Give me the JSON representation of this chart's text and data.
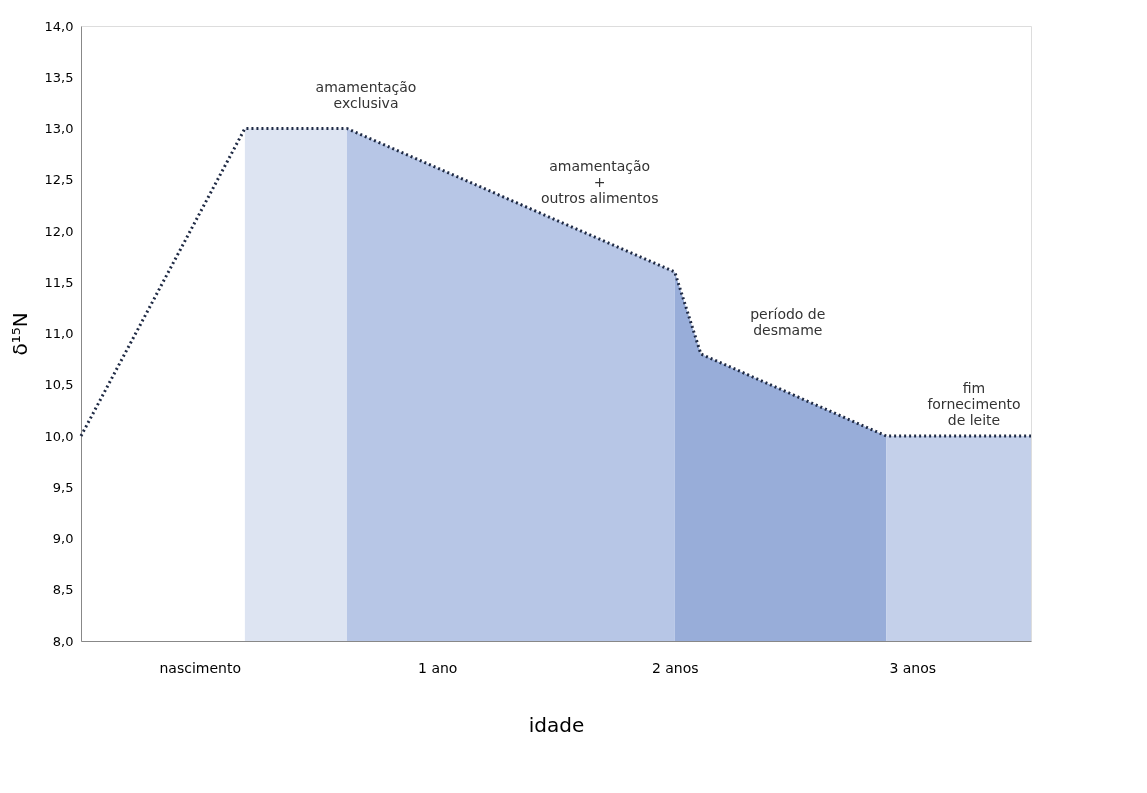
{
  "chart_data": {
    "type": "area",
    "xlabel": "idade",
    "ylabel": "δ¹⁵N",
    "xlim": [
      0,
      4
    ],
    "xticks": [
      {
        "value": 0.5,
        "label": "nascimento"
      },
      {
        "value": 1.5,
        "label": "1 ano"
      },
      {
        "value": 2.5,
        "label": "2 anos"
      },
      {
        "value": 3.5,
        "label": "3 anos"
      }
    ],
    "ylim": [
      8,
      14
    ],
    "yticks": [
      {
        "value": 8,
        "label": "8,0"
      },
      {
        "value": 8.5,
        "label": "8,5"
      },
      {
        "value": 9,
        "label": "9,0"
      },
      {
        "value": 9.5,
        "label": "9,5"
      },
      {
        "value": 10,
        "label": "10,0"
      },
      {
        "value": 10.5,
        "label": "10,5"
      },
      {
        "value": 11,
        "label": "11,0"
      },
      {
        "value": 11.5,
        "label": "11,5"
      },
      {
        "value": 12,
        "label": "12,0"
      },
      {
        "value": 12.5,
        "label": "12,5"
      },
      {
        "value": 13,
        "label": "13,0"
      },
      {
        "value": 13.5,
        "label": "13,5"
      },
      {
        "value": 14,
        "label": "14,0"
      }
    ],
    "series": [
      {
        "color": "#dde4f2",
        "x": [
          0.69,
          1.12
        ],
        "values": [
          13.0,
          13.0
        ]
      },
      {
        "type": "area",
        "color": "#b7c6e6",
        "x": [
          1.12,
          2.5
        ],
        "values": [
          13.0,
          11.6
        ]
      },
      {
        "type": "area",
        "color": "#98add9",
        "x": [
          2.5,
          2.61,
          3.39
        ],
        "values": [
          11.6,
          10.8,
          10.0
        ]
      },
      {
        "type": "area",
        "color": "#c4d0ea",
        "x": [
          3.39,
          4.0
        ],
        "values": [
          10.0,
          10.0
        ]
      },
      {
        "type": "line",
        "color": "#1f2a44",
        "line_style": "dotted",
        "x": [
          0,
          0.69,
          1.12,
          2.5,
          2.61,
          3.39,
          4.0
        ],
        "values": [
          10.0,
          13.0,
          13.0,
          11.6,
          10.8,
          10.0,
          10.0
        ]
      }
    ],
    "annotations": [
      "amamentação\nexclusiva",
      "amamentação\n+\noutros alimentos",
      "período de\ndesmame",
      "fim\nfornecimento\nde leite"
    ],
    "grid": false,
    "marker": "none"
  }
}
